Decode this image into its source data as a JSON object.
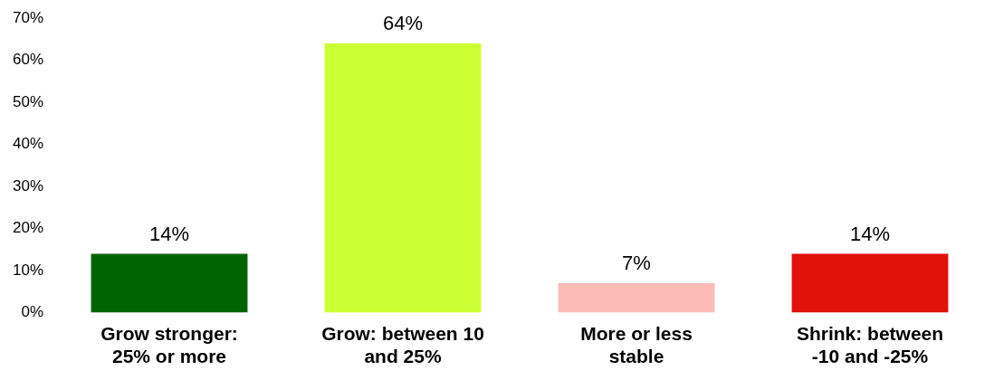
{
  "chart_data": {
    "type": "bar",
    "categories": [
      "Grow stronger: 25% or more",
      "Grow: between 10 and 25%",
      "More or less stable",
      "Shrink: between -10 and -25%"
    ],
    "values": [
      14,
      64,
      7,
      14
    ],
    "colors": [
      "#006400",
      "#ccff33",
      "#fbbcb8",
      "#e0120a"
    ],
    "value_labels": [
      "14%",
      "64%",
      "7%",
      "14%"
    ],
    "ylim": [
      0,
      70
    ],
    "yticks": [
      {
        "value": 0,
        "label": "0%"
      },
      {
        "value": 10,
        "label": "10%"
      },
      {
        "value": 20,
        "label": "20%"
      },
      {
        "value": 30,
        "label": "30%"
      },
      {
        "value": 40,
        "label": "40%"
      },
      {
        "value": 50,
        "label": "50%"
      },
      {
        "value": 60,
        "label": "60%"
      },
      {
        "value": 70,
        "label": "70%"
      }
    ],
    "grid": false,
    "legend": false
  }
}
